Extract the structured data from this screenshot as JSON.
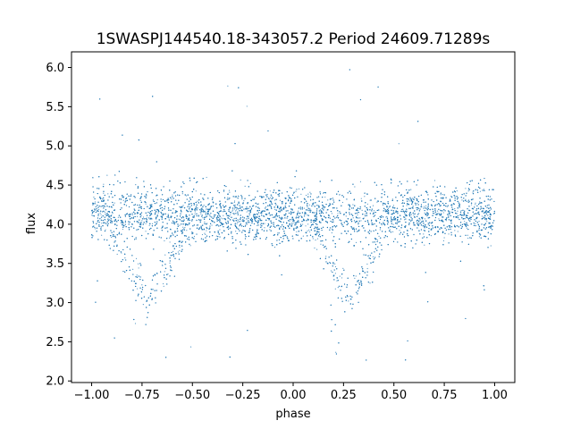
{
  "chart_data": {
    "type": "scatter",
    "title": "1SWASPJ144540.18-343057.2 Period 24609.71289s",
    "xlabel": "phase",
    "ylabel": "flux",
    "xlim": [
      -1.1,
      1.1
    ],
    "ylim": [
      1.98,
      6.2
    ],
    "xticks": [
      -1.0,
      -0.75,
      -0.5,
      -0.25,
      0.0,
      0.25,
      0.5,
      0.75,
      1.0
    ],
    "xtick_labels": [
      "−1.00",
      "−0.75",
      "−0.50",
      "−0.25",
      "0.00",
      "0.25",
      "0.50",
      "0.75",
      "1.00"
    ],
    "yticks": [
      2.0,
      2.5,
      3.0,
      3.5,
      4.0,
      4.5,
      5.0,
      5.5,
      6.0
    ],
    "ytick_labels": [
      "2.0",
      "2.5",
      "3.0",
      "3.5",
      "4.0",
      "4.5",
      "5.0",
      "5.5",
      "6.0"
    ],
    "grid": false,
    "point_color": "#1f77b4",
    "series": [
      {
        "x_range": [
          -1.0,
          1.0
        ],
        "baseline_flux": 4.12,
        "baseline_spread": 0.17,
        "eclipse_minima": [
          {
            "phase": -0.72,
            "flux": 3.0,
            "half_width": 0.22
          },
          {
            "phase": 0.28,
            "flux": 3.0,
            "half_width": 0.22
          }
        ],
        "outlier_flux_range": [
          2.2,
          6.0
        ]
      }
    ]
  }
}
